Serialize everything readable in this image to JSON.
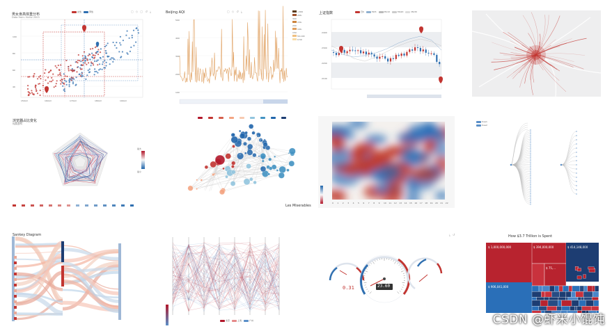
{
  "panels": {
    "scatter": {
      "title": "男女身高体重分布",
      "subtitle": "Data from: Heinz 2003",
      "legend": [
        "女性",
        "男性"
      ]
    },
    "rainfall": {
      "title": "Beijing AQI",
      "legend": [
        "0-50",
        "50-100",
        "100-150",
        "150-200",
        "200-300",
        ">300"
      ]
    },
    "kline": {
      "title": "上证指数",
      "legend": [
        "日K",
        "MA5",
        "MA10",
        "MA20",
        "MA30"
      ]
    },
    "radar": {
      "title": "浏览器占比变化",
      "subtitle": "纯属虚构",
      "visual_labels": [
        "最大",
        "最小"
      ]
    },
    "graph": {
      "title": "Les Miserables",
      "legend": [
        "类目0",
        "类目1",
        "类目2",
        "类目3",
        "类目4",
        "类目5",
        "类目6",
        "类目7",
        "类目8"
      ]
    },
    "heatmap": {},
    "tree": {
      "legend": [
        "tree1",
        "tree2"
      ]
    },
    "sankey": {
      "title": "Sankey Diagram"
    },
    "parallel": {
      "legend": [
        "北京",
        "上海",
        "广州"
      ]
    },
    "gauge": {
      "left_value": "0.31",
      "center_value": "23.60"
    },
    "treemap": {
      "title": "How $3.7 Trillion is Spent",
      "tiles": [
        "$ 1,000,000,000",
        "$ 394,000,000",
        "$ 75,...",
        "$ 414,148,000",
        "$ 906,041,000"
      ]
    }
  },
  "watermark": "CSDN @虾米小馄饨",
  "colors": {
    "red": "#c23531",
    "blue": "#2f6fb0",
    "darkred": "#b2182b",
    "navy": "#1d3d72"
  }
}
